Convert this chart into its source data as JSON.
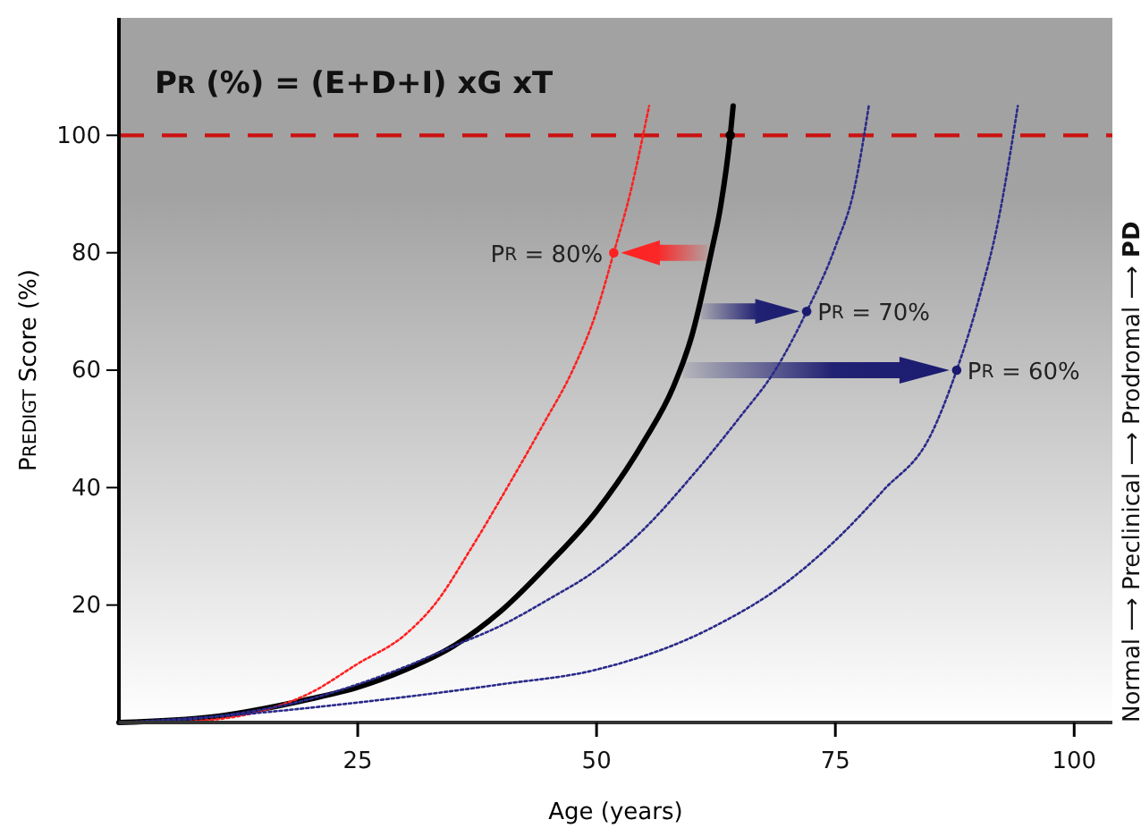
{
  "chart_data": {
    "type": "line",
    "title": "PR (%) = (E+D+I) xG xT",
    "xlabel": "Age (years)",
    "ylabel": "PREDIGT Score (%)",
    "xlim": [
      0,
      104
    ],
    "xticks": [
      25,
      50,
      75,
      100
    ],
    "ylim": [
      0,
      120
    ],
    "yticks": [
      20,
      40,
      60,
      80,
      100
    ],
    "grid": false,
    "series": [
      {
        "color": "#000000",
        "line_style": "solid",
        "x": [
          0,
          10,
          20,
          25,
          30,
          35,
          40,
          45,
          50,
          55,
          58,
          60,
          62,
          63,
          64,
          64.3
        ],
        "values": [
          0,
          1,
          4,
          6,
          9,
          13,
          19,
          27,
          36,
          48,
          57,
          66,
          80,
          88,
          100,
          105
        ]
      },
      {
        "color": "#ff2020",
        "line_style": "dotted",
        "x": [
          4,
          10,
          15,
          20,
          25,
          30,
          33,
          37,
          41,
          44.5,
          47.5,
          50,
          51.8,
          53.5,
          55.5
        ],
        "values": [
          0,
          0.5,
          2,
          5,
          10,
          15,
          20,
          30,
          41,
          51,
          60,
          70,
          80,
          90,
          105
        ]
      },
      {
        "color": "#2a2a8a",
        "line_style": "dotted",
        "x": [
          0,
          10,
          20,
          25,
          30,
          35,
          40,
          45,
          50,
          55,
          60,
          65,
          68.7,
          72,
          75,
          77,
          78.5
        ],
        "values": [
          0,
          1,
          4,
          6.5,
          9.5,
          13,
          16.5,
          21,
          26,
          33,
          42,
          52,
          60,
          70,
          81,
          91,
          105
        ]
      },
      {
        "color": "#2a2a8a",
        "line_style": "dotted",
        "x": [
          0,
          10,
          25,
          40,
          50,
          62.5,
          70,
          75,
          80,
          85,
          87.7,
          90,
          92,
          94.1
        ],
        "values": [
          0,
          1,
          3.4,
          6.5,
          9,
          16.5,
          24,
          31,
          39.5,
          49,
          60,
          72,
          85,
          105
        ]
      },
      {
        "type": "scatter",
        "marker": "circle",
        "color": "#000000",
        "x": [
          64
        ],
        "values": [
          100
        ]
      },
      {
        "type": "scatter",
        "marker": "circle",
        "color": "#ff2020",
        "x": [
          51.8
        ],
        "values": [
          80
        ]
      },
      {
        "type": "scatter",
        "marker": "circle",
        "color": "#1a1a70",
        "x": [
          72,
          87.7
        ],
        "values": [
          70,
          60
        ]
      }
    ],
    "ref_lines": [
      {
        "axis": "y",
        "value": 100,
        "color": "#cc1111",
        "line_style": "dashed"
      }
    ],
    "annotations": [
      {
        "text": "PR = 80%",
        "x": 51.8,
        "y": 80
      },
      {
        "text": "PR = 70%",
        "x": 72,
        "y": 70
      },
      {
        "text": "PR = 60%",
        "x": 87.7,
        "y": 60
      },
      "Normal ⟶ Preclinical ⟶ Prodromal ⟶ PD"
    ]
  }
}
